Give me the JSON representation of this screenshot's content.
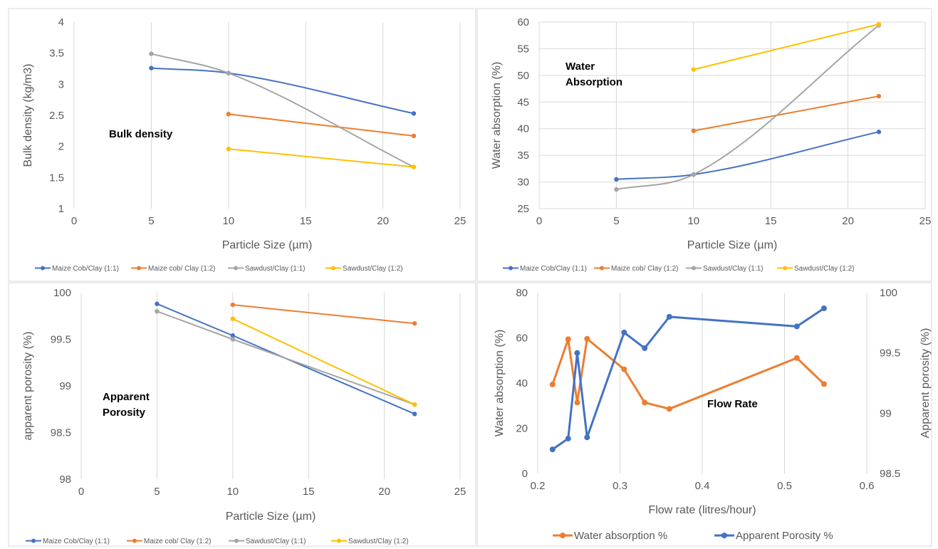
{
  "chart_data": [
    {
      "id": "bulk",
      "type": "scatter",
      "smooth": true,
      "annotation": [
        "Bulk density"
      ],
      "xlabel": "Particle Size (µm)",
      "ylabel": "Bulk density (kg/m3)",
      "xlim": [
        0,
        25
      ],
      "ylim": [
        1,
        4
      ],
      "xticks": [
        0,
        5,
        10,
        15,
        20,
        25
      ],
      "yticks": [
        1,
        1.5,
        2,
        2.5,
        3,
        3.5,
        4
      ],
      "xtick_labels": [
        "0",
        "5",
        "10",
        "15",
        "20",
        "25"
      ],
      "ytick_labels": [
        "1",
        "1.5",
        "2",
        "2.5",
        "3",
        "3.5",
        "4"
      ],
      "grid": "vertical",
      "legend_position": "bottom",
      "series": [
        {
          "name": "Maize Cob/Clay (1:1)",
          "color": "#4472c4",
          "x": [
            5,
            10,
            22
          ],
          "y": [
            3.26,
            3.18,
            2.53
          ]
        },
        {
          "name": "Maize cob/ Clay (1:2)",
          "color": "#ed7d31",
          "x": [
            10,
            22
          ],
          "y": [
            2.52,
            2.17
          ]
        },
        {
          "name": "Sawdust/Clay (1:1)",
          "color": "#a5a5a5",
          "x": [
            5,
            10,
            22
          ],
          "y": [
            3.49,
            3.18,
            1.67
          ]
        },
        {
          "name": "Sawdust/Clay (1:2)",
          "color": "#ffc000",
          "x": [
            10,
            22
          ],
          "y": [
            1.96,
            1.67
          ]
        }
      ]
    },
    {
      "id": "water",
      "type": "scatter",
      "smooth": true,
      "annotation": [
        "Water",
        "Absorption"
      ],
      "xlabel": "Particle Size (µm)",
      "ylabel": "Water absorption (%)",
      "xlim": [
        0,
        25
      ],
      "ylim": [
        25,
        60
      ],
      "xticks": [
        0,
        5,
        10,
        15,
        20,
        25
      ],
      "yticks": [
        25,
        30,
        35,
        40,
        45,
        50,
        55,
        60
      ],
      "xtick_labels": [
        "0",
        "5",
        "10",
        "15",
        "20",
        "25"
      ],
      "ytick_labels": [
        "25",
        "30",
        "35",
        "40",
        "45",
        "50",
        "55",
        "60"
      ],
      "grid": "both",
      "legend_position": "bottom",
      "series": [
        {
          "name": "Maize Cob/Clay (1:1)",
          "color": "#4472c4",
          "x": [
            5,
            10,
            22
          ],
          "y": [
            30.5,
            31.4,
            39.4
          ]
        },
        {
          "name": "Maize cob/ Clay (1:2)",
          "color": "#ed7d31",
          "x": [
            10,
            22
          ],
          "y": [
            39.6,
            46.1
          ]
        },
        {
          "name": "Sawdust/Clay (1:1)",
          "color": "#a5a5a5",
          "x": [
            5,
            10,
            22
          ],
          "y": [
            28.6,
            31.4,
            59.4
          ]
        },
        {
          "name": "Sawdust/Clay (1:2)",
          "color": "#ffc000",
          "x": [
            10,
            22
          ],
          "y": [
            51.1,
            59.6
          ]
        }
      ]
    },
    {
      "id": "porosity",
      "type": "line",
      "smooth": false,
      "annotation": [
        "Apparent",
        "Porosity"
      ],
      "xlabel": "Particle Size (µm)",
      "ylabel": "apparent porosity (%)",
      "xlim": [
        0,
        25
      ],
      "ylim": [
        98,
        100
      ],
      "xticks": [
        0,
        5,
        10,
        15,
        20,
        25
      ],
      "yticks": [
        98,
        98.5,
        99,
        99.5,
        100
      ],
      "xtick_labels": [
        "0",
        "5",
        "10",
        "15",
        "20",
        "25"
      ],
      "ytick_labels": [
        "98",
        "98.5",
        "99",
        "99.5",
        "100"
      ],
      "grid": "vertical",
      "legend_position": "bottom",
      "series": [
        {
          "name": "Maize Cob/Clay (1:1)",
          "color": "#4472c4",
          "x": [
            5,
            10,
            22
          ],
          "y": [
            99.88,
            99.54,
            98.7
          ]
        },
        {
          "name": "Maize cob/ Clay (1:2)",
          "color": "#ed7d31",
          "x": [
            10,
            22
          ],
          "y": [
            99.87,
            99.67
          ]
        },
        {
          "name": "Sawdust/Clay (1:1)",
          "color": "#a5a5a5",
          "x": [
            5,
            10,
            22
          ],
          "y": [
            99.8,
            99.5,
            98.8
          ]
        },
        {
          "name": "Sawdust/Clay (1:2)",
          "color": "#ffc000",
          "x": [
            10,
            22
          ],
          "y": [
            99.72,
            98.8
          ]
        }
      ]
    },
    {
      "id": "flow",
      "type": "line",
      "smooth": false,
      "annotation": [
        "Flow Rate"
      ],
      "xlabel": "Flow rate (litres/hour)",
      "ylabel": "Water absorption (%)",
      "y2label": "Apparent porosity (%)",
      "xlim": [
        0.2,
        0.6
      ],
      "ylim": [
        0,
        80
      ],
      "y2lim": [
        98.5,
        100
      ],
      "xticks": [
        0.2,
        0.3,
        0.4,
        0.5,
        0.6
      ],
      "yticks": [
        0,
        20,
        40,
        60,
        80
      ],
      "y2ticks": [
        98.5,
        99,
        99.5,
        100
      ],
      "xtick_labels": [
        "0.2",
        "0.3",
        "0.4",
        "0.5",
        "0.6"
      ],
      "ytick_labels": [
        "0",
        "20",
        "40",
        "60",
        "80"
      ],
      "y2tick_labels": [
        "98.5",
        "99",
        "99.5",
        "100"
      ],
      "grid": "vertical",
      "legend_position": "bottom",
      "series": [
        {
          "name": "Water absorption %",
          "color": "#ed7d31",
          "axis": "left",
          "x": [
            0.218,
            0.237,
            0.248,
            0.26,
            0.305,
            0.33,
            0.36,
            0.515,
            0.548
          ],
          "y": [
            39.4,
            59.4,
            31.4,
            59.6,
            46.1,
            31.4,
            28.6,
            51.1,
            39.6
          ]
        },
        {
          "name": "Apparent Porosity %",
          "color": "#4472c4",
          "axis": "right",
          "x": [
            0.218,
            0.237,
            0.248,
            0.26,
            0.305,
            0.33,
            0.36,
            0.515,
            0.548
          ],
          "y": [
            98.7,
            98.79,
            99.5,
            98.8,
            99.67,
            99.54,
            99.8,
            99.72,
            99.87
          ]
        }
      ]
    }
  ]
}
